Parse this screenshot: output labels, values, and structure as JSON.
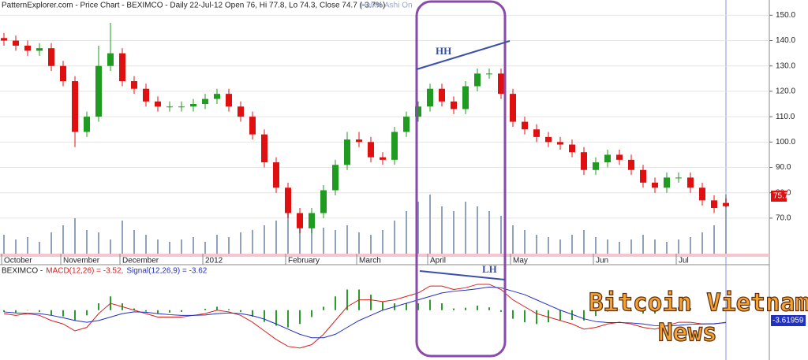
{
  "header": "PatternExplorer.com - Price Chart - BEXIMCO - Daily 22-Jul-12 Open 76, Hi 77.8, Lo 74.3, Close 74.7 (-3.7%)",
  "mode": "Heikin Ashi On",
  "chart_data": [
    {
      "type": "candlestick",
      "categories": [
        "October",
        null,
        null,
        null,
        null,
        "November",
        null,
        null,
        null,
        null,
        "December",
        null,
        null,
        null,
        null,
        null,
        null,
        "2012",
        null,
        null,
        null,
        null,
        null,
        null,
        "February",
        null,
        null,
        null,
        null,
        null,
        "March",
        null,
        null,
        null,
        null,
        null,
        "April",
        null,
        null,
        null,
        null,
        null,
        null,
        "May",
        null,
        null,
        null,
        null,
        null,
        null,
        "Jun",
        null,
        null,
        null,
        null,
        null,
        null,
        "Jul",
        null,
        null,
        null,
        null
      ],
      "open": [
        141,
        140,
        138,
        136,
        137,
        130,
        124,
        104,
        110,
        130,
        135,
        124,
        121,
        116,
        114,
        114,
        114,
        115,
        117,
        119,
        114,
        110,
        103,
        92,
        82,
        72,
        66,
        72,
        81,
        91,
        101,
        100,
        94,
        93,
        104,
        110,
        114,
        121,
        116,
        113,
        122,
        127,
        127,
        119,
        108,
        105,
        102,
        100,
        99,
        96,
        89,
        92,
        95,
        93,
        89,
        84,
        82,
        86,
        86,
        82,
        77,
        76
      ],
      "high": [
        143,
        142,
        140,
        139,
        139,
        132,
        126,
        112,
        138,
        147,
        137,
        126,
        123,
        118,
        116,
        116,
        117,
        119,
        121,
        121,
        116,
        112,
        105,
        94,
        84,
        74,
        74,
        83,
        93,
        104,
        104,
        102,
        96,
        106,
        112,
        116,
        123,
        123,
        118,
        124,
        129,
        129,
        129,
        121,
        110,
        107,
        104,
        102,
        101,
        98,
        94,
        97,
        97,
        95,
        91,
        86,
        88,
        88,
        88,
        84,
        79,
        77.8
      ],
      "low": [
        138,
        136,
        134,
        134,
        128,
        122,
        98,
        102,
        108,
        128,
        122,
        119,
        114,
        112,
        112,
        112,
        112,
        113,
        115,
        112,
        108,
        101,
        90,
        80,
        70,
        64,
        64,
        70,
        79,
        89,
        98,
        92,
        91,
        91,
        102,
        108,
        112,
        114,
        111,
        111,
        120,
        125,
        117,
        106,
        103,
        100,
        98,
        97,
        94,
        87,
        87,
        90,
        91,
        87,
        82,
        80,
        80,
        84,
        80,
        75,
        72,
        74.3
      ],
      "close": [
        140,
        138,
        136,
        137,
        130,
        124,
        104,
        110,
        130,
        135,
        124,
        121,
        116,
        114,
        114,
        114,
        115,
        117,
        119,
        114,
        110,
        103,
        92,
        82,
        72,
        66,
        72,
        81,
        91,
        101,
        100,
        94,
        93,
        104,
        110,
        114,
        121,
        116,
        113,
        122,
        127,
        127,
        119,
        108,
        105,
        102,
        100,
        99,
        96,
        89,
        92,
        95,
        93,
        89,
        84,
        82,
        86,
        86,
        82,
        77,
        74,
        74.7
      ],
      "volume": [
        8,
        6,
        7,
        5,
        9,
        12,
        15,
        10,
        9,
        6,
        14,
        10,
        8,
        6,
        5,
        6,
        7,
        5,
        8,
        7,
        9,
        10,
        12,
        14,
        18,
        15,
        12,
        11,
        10,
        12,
        9,
        8,
        10,
        14,
        18,
        22,
        25,
        20,
        18,
        22,
        20,
        18,
        16,
        12,
        10,
        8,
        7,
        6,
        8,
        10,
        7,
        6,
        5,
        6,
        8,
        6,
        5,
        6,
        7,
        9,
        12,
        25
      ],
      "volume_lim": [
        0,
        30
      ],
      "up_color": "#1f9b1f",
      "down_color": "#e01010",
      "volume_color": "#8fa3bf",
      "ylim": [
        56,
        156
      ],
      "yticks": [
        {
          "value": 70,
          "label": "70.0"
        },
        {
          "value": 80,
          "label": "80.0"
        },
        {
          "value": 90,
          "label": "90.0"
        },
        {
          "value": 100,
          "label": "100.0"
        },
        {
          "value": 110,
          "label": "110.0"
        },
        {
          "value": 120,
          "label": "120.0"
        },
        {
          "value": 130,
          "label": "130.0"
        },
        {
          "value": 140,
          "label": "140.0"
        },
        {
          "value": 150,
          "label": "150.0"
        }
      ],
      "grid": true,
      "annotations": [
        "HH",
        "75.7"
      ]
    },
    {
      "type": "macd",
      "legend": [
        "BEXIMCO -",
        "MACD(12,26) = -3.52,",
        "Signal(12,26,9) = -3.62"
      ],
      "series": [
        {
          "name": "MACD(12,26)",
          "color": "#d62020",
          "values": [
            -1,
            -1.5,
            -1,
            -1.5,
            -3,
            -4,
            -6,
            -5,
            -1,
            2,
            1,
            0,
            -1,
            -2,
            -2,
            -2,
            -1.5,
            -1,
            0,
            -0.5,
            -1.5,
            -3.5,
            -6,
            -8.5,
            -10.5,
            -11,
            -10,
            -7,
            -3,
            1,
            3,
            3,
            2.5,
            3,
            4,
            5,
            7,
            7,
            6,
            6.5,
            7.5,
            7.5,
            6,
            3,
            1,
            -1,
            -2,
            -3,
            -4,
            -5.5,
            -5,
            -4,
            -3.5,
            -4,
            -5,
            -5.5,
            -4.5,
            -3.5,
            -3.5,
            -4,
            -4,
            -3.52
          ]
        },
        {
          "name": "Signal(12,26,9)",
          "color": "#2030c0",
          "values": [
            -0.5,
            -0.8,
            -0.9,
            -1,
            -1.5,
            -2.2,
            -3,
            -3.5,
            -3,
            -2,
            -1,
            -0.5,
            -0.6,
            -1,
            -1.3,
            -1.5,
            -1.5,
            -1.4,
            -1,
            -0.8,
            -1,
            -1.6,
            -2.6,
            -4,
            -5.5,
            -7,
            -8,
            -8,
            -7,
            -5,
            -3,
            -1.5,
            0,
            1,
            2,
            3,
            4,
            5,
            5.5,
            5.8,
            6.2,
            6.7,
            6.5,
            5.5,
            4.5,
            3,
            1.5,
            0,
            -1.2,
            -2.5,
            -3.3,
            -3.6,
            -3.6,
            -3.7,
            -4,
            -4.5,
            -4.6,
            -4.4,
            -4.1,
            -4,
            -3.9,
            -3.62
          ]
        }
      ],
      "histogram": [
        -0.5,
        -0.7,
        -0.1,
        -0.5,
        -1.5,
        -1.8,
        -3,
        -1.5,
        2,
        4,
        2,
        0.5,
        -0.4,
        -1,
        -0.7,
        -0.5,
        0,
        0.4,
        1,
        0.3,
        -0.5,
        -1.9,
        -3.4,
        -4.5,
        -5,
        -4,
        -2,
        1,
        4,
        6,
        6,
        4.5,
        2.5,
        2,
        2,
        2,
        3,
        2,
        0.5,
        0.7,
        1.3,
        0.8,
        -0.5,
        -2.5,
        -3.5,
        -4,
        -3.5,
        -3,
        -2.8,
        -3,
        -1.7,
        -0.4,
        0.1,
        -0.3,
        -1,
        -1,
        0.1,
        0.9,
        0.6,
        0,
        -0.1,
        0.1
      ],
      "histogram_color": "#2e9a2e",
      "ylim": [
        -14,
        10
      ],
      "annotations": [
        "LH",
        "-3.61959"
      ]
    }
  ],
  "watermark": [
    "Bitcoin Vietnam",
    "News"
  ]
}
